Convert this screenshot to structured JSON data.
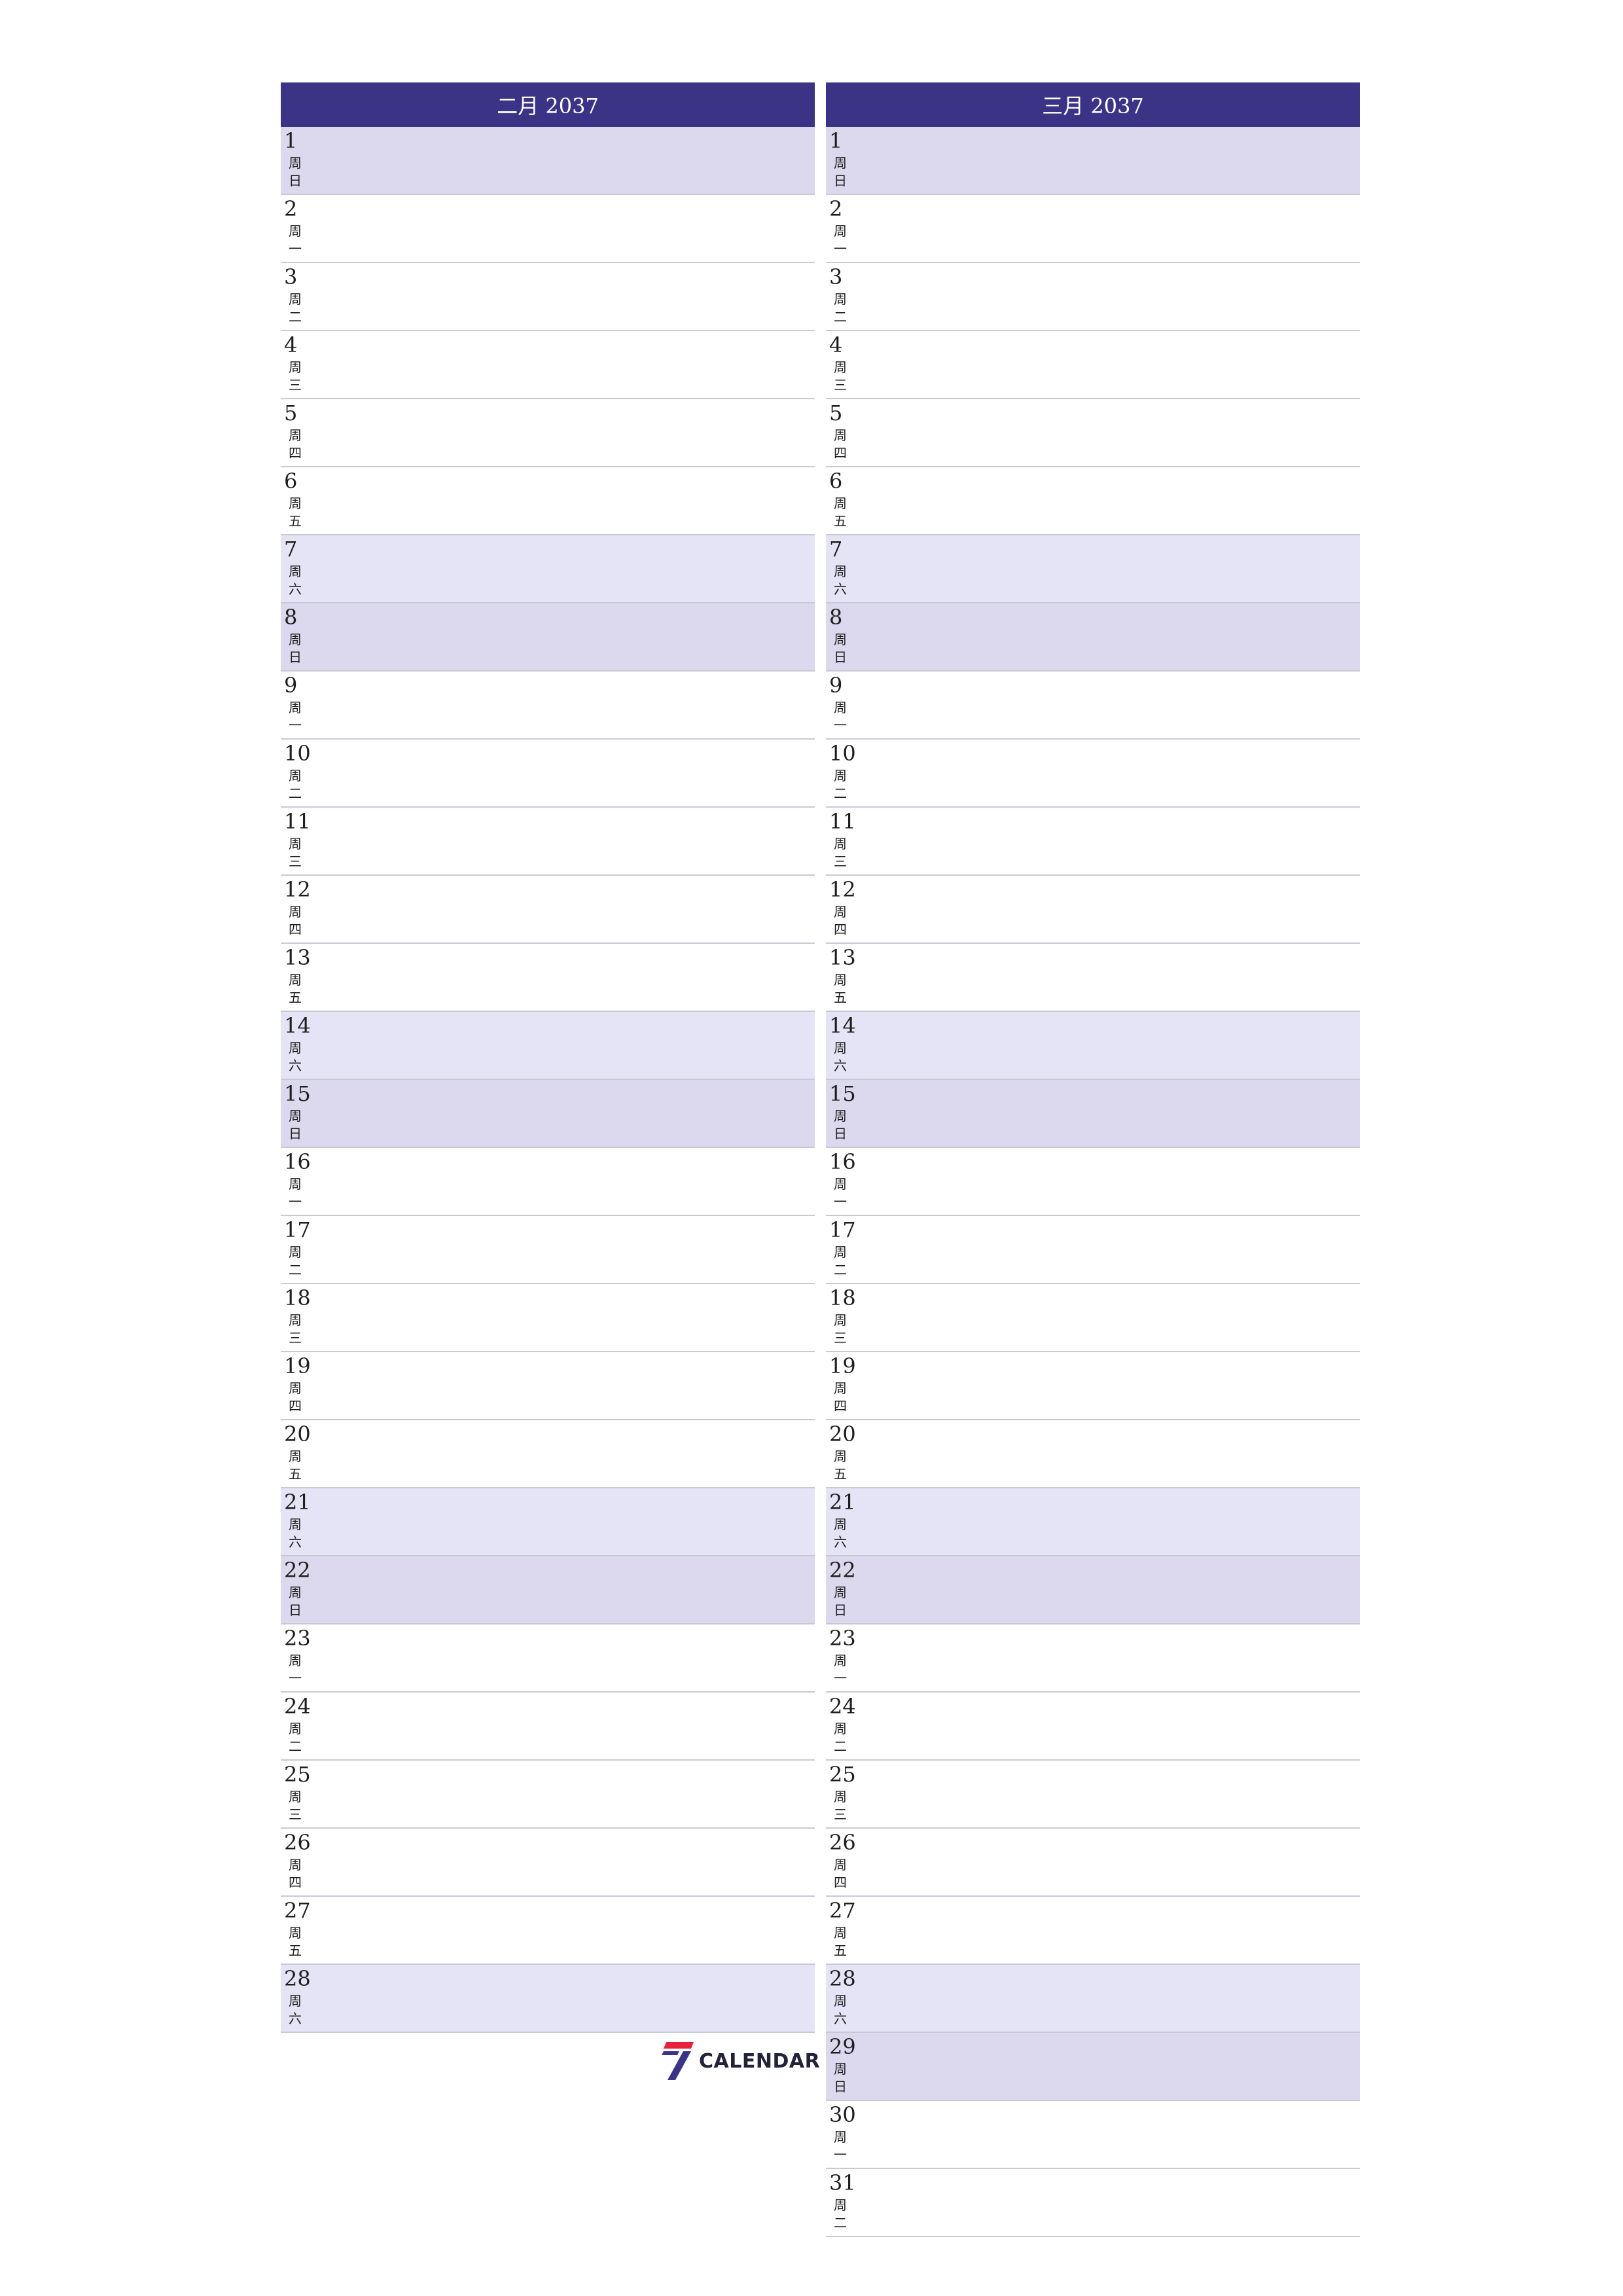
{
  "months": [
    {
      "title": "二月 2037",
      "days": [
        {
          "num": "1",
          "weekday": "周日",
          "type": "sun"
        },
        {
          "num": "2",
          "weekday": "周一",
          "type": ""
        },
        {
          "num": "3",
          "weekday": "周二",
          "type": ""
        },
        {
          "num": "4",
          "weekday": "周三",
          "type": ""
        },
        {
          "num": "5",
          "weekday": "周四",
          "type": ""
        },
        {
          "num": "6",
          "weekday": "周五",
          "type": ""
        },
        {
          "num": "7",
          "weekday": "周六",
          "type": "sat"
        },
        {
          "num": "8",
          "weekday": "周日",
          "type": "sun"
        },
        {
          "num": "9",
          "weekday": "周一",
          "type": ""
        },
        {
          "num": "10",
          "weekday": "周二",
          "type": ""
        },
        {
          "num": "11",
          "weekday": "周三",
          "type": ""
        },
        {
          "num": "12",
          "weekday": "周四",
          "type": ""
        },
        {
          "num": "13",
          "weekday": "周五",
          "type": ""
        },
        {
          "num": "14",
          "weekday": "周六",
          "type": "sat"
        },
        {
          "num": "15",
          "weekday": "周日",
          "type": "sun"
        },
        {
          "num": "16",
          "weekday": "周一",
          "type": ""
        },
        {
          "num": "17",
          "weekday": "周二",
          "type": ""
        },
        {
          "num": "18",
          "weekday": "周三",
          "type": ""
        },
        {
          "num": "19",
          "weekday": "周四",
          "type": ""
        },
        {
          "num": "20",
          "weekday": "周五",
          "type": ""
        },
        {
          "num": "21",
          "weekday": "周六",
          "type": "sat"
        },
        {
          "num": "22",
          "weekday": "周日",
          "type": "sun"
        },
        {
          "num": "23",
          "weekday": "周一",
          "type": ""
        },
        {
          "num": "24",
          "weekday": "周二",
          "type": ""
        },
        {
          "num": "25",
          "weekday": "周三",
          "type": ""
        },
        {
          "num": "26",
          "weekday": "周四",
          "type": ""
        },
        {
          "num": "27",
          "weekday": "周五",
          "type": ""
        },
        {
          "num": "28",
          "weekday": "周六",
          "type": "sat"
        }
      ]
    },
    {
      "title": "三月 2037",
      "days": [
        {
          "num": "1",
          "weekday": "周日",
          "type": "sun"
        },
        {
          "num": "2",
          "weekday": "周一",
          "type": ""
        },
        {
          "num": "3",
          "weekday": "周二",
          "type": ""
        },
        {
          "num": "4",
          "weekday": "周三",
          "type": ""
        },
        {
          "num": "5",
          "weekday": "周四",
          "type": ""
        },
        {
          "num": "6",
          "weekday": "周五",
          "type": ""
        },
        {
          "num": "7",
          "weekday": "周六",
          "type": "sat"
        },
        {
          "num": "8",
          "weekday": "周日",
          "type": "sun"
        },
        {
          "num": "9",
          "weekday": "周一",
          "type": ""
        },
        {
          "num": "10",
          "weekday": "周二",
          "type": ""
        },
        {
          "num": "11",
          "weekday": "周三",
          "type": ""
        },
        {
          "num": "12",
          "weekday": "周四",
          "type": ""
        },
        {
          "num": "13",
          "weekday": "周五",
          "type": ""
        },
        {
          "num": "14",
          "weekday": "周六",
          "type": "sat"
        },
        {
          "num": "15",
          "weekday": "周日",
          "type": "sun"
        },
        {
          "num": "16",
          "weekday": "周一",
          "type": ""
        },
        {
          "num": "17",
          "weekday": "周二",
          "type": ""
        },
        {
          "num": "18",
          "weekday": "周三",
          "type": ""
        },
        {
          "num": "19",
          "weekday": "周四",
          "type": ""
        },
        {
          "num": "20",
          "weekday": "周五",
          "type": ""
        },
        {
          "num": "21",
          "weekday": "周六",
          "type": "sat"
        },
        {
          "num": "22",
          "weekday": "周日",
          "type": "sun"
        },
        {
          "num": "23",
          "weekday": "周一",
          "type": ""
        },
        {
          "num": "24",
          "weekday": "周二",
          "type": ""
        },
        {
          "num": "25",
          "weekday": "周三",
          "type": ""
        },
        {
          "num": "26",
          "weekday": "周四",
          "type": ""
        },
        {
          "num": "27",
          "weekday": "周五",
          "type": ""
        },
        {
          "num": "28",
          "weekday": "周六",
          "type": "sat"
        },
        {
          "num": "29",
          "weekday": "周日",
          "type": "sun"
        },
        {
          "num": "30",
          "weekday": "周一",
          "type": ""
        },
        {
          "num": "31",
          "weekday": "周二",
          "type": ""
        }
      ]
    }
  ],
  "logo": {
    "text": "CALENDAR",
    "icon": "seven-logo-icon"
  },
  "colors": {
    "header": "#3b3486",
    "saturday": "#e4e4f6",
    "sunday": "#dcd8ee",
    "rule": "#c9c9d6"
  }
}
